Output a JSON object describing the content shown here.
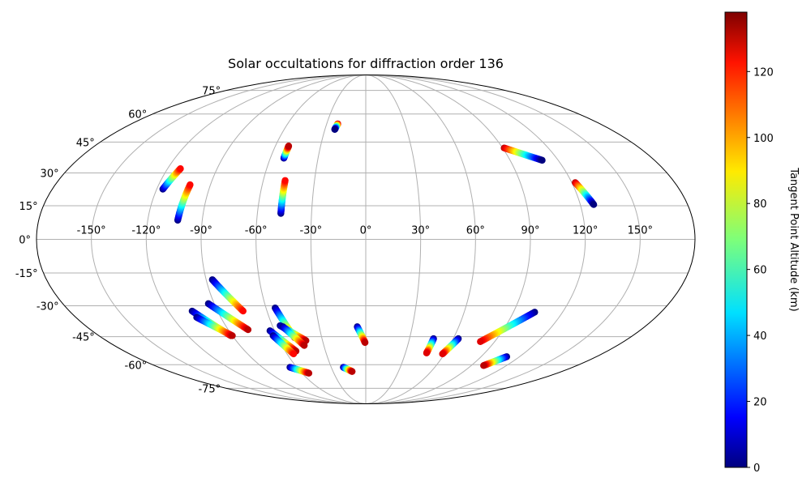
{
  "chart_data": {
    "type": "scatter",
    "projection": "mollweide",
    "title": "Solar occultations for diffraction order 136",
    "xlabel": "",
    "ylabel": "",
    "grid": true,
    "x_ticks": [
      -150,
      -120,
      -90,
      -60,
      -30,
      0,
      30,
      60,
      90,
      120,
      150
    ],
    "x_tick_labels": [
      "-150°",
      "-120°",
      "-90°",
      "-60°",
      "-30°",
      "0°",
      "30°",
      "60°",
      "90°",
      "120°",
      "150°"
    ],
    "y_ticks": [
      -75,
      -60,
      -45,
      -30,
      -15,
      0,
      15,
      30,
      45,
      60,
      75
    ],
    "y_tick_labels": [
      "-75°",
      "-60°",
      "-45°",
      "-30°",
      "-15°",
      "0°",
      "15°",
      "30°",
      "45°",
      "60°",
      "75°"
    ],
    "colorbar": {
      "label": "Tangent Point Altitude (km)",
      "colormap": "jet",
      "range": [
        0,
        138
      ],
      "ticks": [
        0,
        20,
        40,
        60,
        80,
        100,
        120
      ],
      "tick_labels": [
        "0",
        "20",
        "40",
        "60",
        "80",
        "100",
        "120"
      ]
    },
    "series": [
      {
        "start": [
          -116.5,
          22.5
        ],
        "end": [
          -112.2,
          32.0
        ],
        "alt": [
          0,
          120
        ]
      },
      {
        "start": [
          -103.5,
          8.5
        ],
        "end": [
          -101.8,
          24.5
        ],
        "alt": [
          0,
          120
        ]
      },
      {
        "start": [
          -51.5,
          37.0
        ],
        "end": [
          -51.2,
          43.0
        ],
        "alt": [
          0,
          130
        ]
      },
      {
        "start": [
          -47.0,
          11.5
        ],
        "end": [
          -47.2,
          26.5
        ],
        "alt": [
          0,
          120
        ]
      },
      {
        "start": [
          -21.5,
          54.5
        ],
        "end": [
          -22.8,
          51.5
        ],
        "alt": [
          130,
          0
        ]
      },
      {
        "start": [
          91.0,
          42.0
        ],
        "end": [
          110.0,
          36.0
        ],
        "alt": [
          130,
          0
        ]
      },
      {
        "start": [
          122.0,
          25.5
        ],
        "end": [
          127.5,
          15.5
        ],
        "alt": [
          130,
          0
        ]
      },
      {
        "start": [
          -86.5,
          -18.0
        ],
        "end": [
          -74.5,
          -32.5
        ],
        "alt": [
          0,
          120
        ]
      },
      {
        "start": [
          -93.5,
          -29.0
        ],
        "end": [
          -77.0,
          -41.5
        ],
        "alt": [
          0,
          130
        ]
      },
      {
        "start": [
          -105.5,
          -32.5
        ],
        "end": [
          -91.0,
          -44.5
        ],
        "alt": [
          0,
          130
        ]
      },
      {
        "start": [
          -105.0,
          -35.5
        ],
        "end": [
          -90.0,
          -44.5
        ],
        "alt": [
          0,
          130
        ]
      },
      {
        "start": [
          -66.0,
          -61.5
        ],
        "end": [
          -53.5,
          -65.0
        ],
        "alt": [
          0,
          130
        ]
      },
      {
        "start": [
          -63.0,
          -42.0
        ],
        "end": [
          -52.0,
          -52.5
        ],
        "alt": [
          0,
          130
        ]
      },
      {
        "start": [
          -62.5,
          -44.5
        ],
        "end": [
          -55.0,
          -54.0
        ],
        "alt": [
          0,
          120
        ]
      },
      {
        "start": [
          -54.5,
          -31.0
        ],
        "end": [
          -48.5,
          -45.5
        ],
        "alt": [
          0,
          120
        ]
      },
      {
        "start": [
          -55.0,
          -39.5
        ],
        "end": [
          -41.5,
          -47.0
        ],
        "alt": [
          0,
          130
        ]
      },
      {
        "start": [
          -53.5,
          -40.0
        ],
        "end": [
          -44.0,
          -49.5
        ],
        "alt": [
          0,
          130
        ]
      },
      {
        "start": [
          -19.5,
          -61.5
        ],
        "end": [
          -12.5,
          -64.0
        ],
        "alt": [
          0,
          130
        ]
      },
      {
        "start": [
          -5.5,
          -40.0
        ],
        "end": [
          -0.5,
          -48.0
        ],
        "alt": [
          0,
          130
        ]
      },
      {
        "start": [
          46.5,
          -46.0
        ],
        "end": [
          46.0,
          -53.5
        ],
        "alt": [
          0,
          125
        ]
      },
      {
        "start": [
          63.5,
          -46.0
        ],
        "end": [
          58.5,
          -54.0
        ],
        "alt": [
          0,
          125
        ]
      },
      {
        "start": [
          103.0,
          -33.0
        ],
        "end": [
          80.0,
          -47.5
        ],
        "alt": [
          0,
          125
        ]
      },
      {
        "start": [
          110.0,
          -55.5
        ],
        "end": [
          100.5,
          -60.5
        ],
        "alt": [
          0,
          130
        ]
      }
    ]
  }
}
